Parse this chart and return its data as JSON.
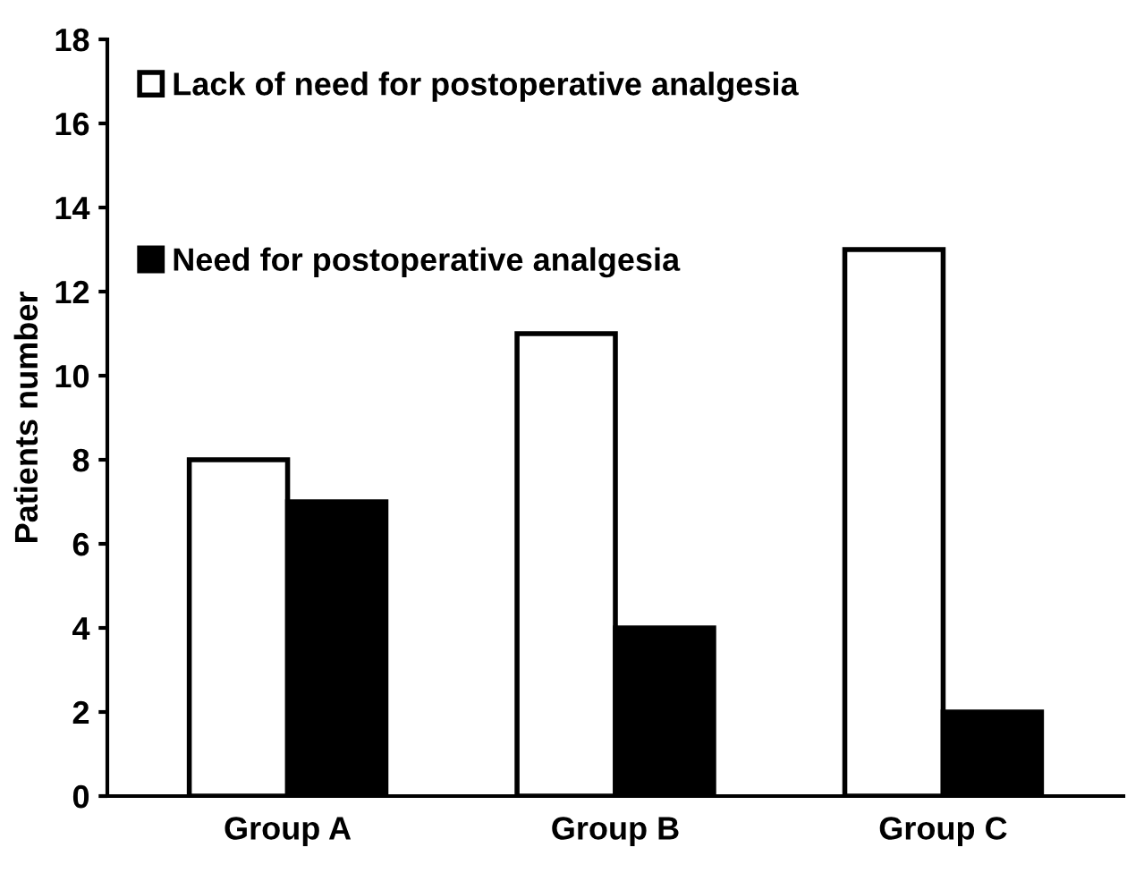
{
  "chart_data": {
    "type": "bar",
    "ylabel": "Patients number",
    "categories": [
      "Group A",
      "Group B",
      "Group C"
    ],
    "series": [
      {
        "name": "Lack of need for postoperative analgesia",
        "color": "#ffffff",
        "values": [
          8,
          11,
          13
        ]
      },
      {
        "name": "Need for postoperative analgesia",
        "color": "#000000",
        "values": [
          7,
          4,
          2
        ]
      }
    ],
    "ylim": [
      0,
      18
    ],
    "yticks": [
      0,
      2,
      4,
      6,
      8,
      10,
      12,
      14,
      16,
      18
    ],
    "legend": "top left",
    "grid": false
  }
}
